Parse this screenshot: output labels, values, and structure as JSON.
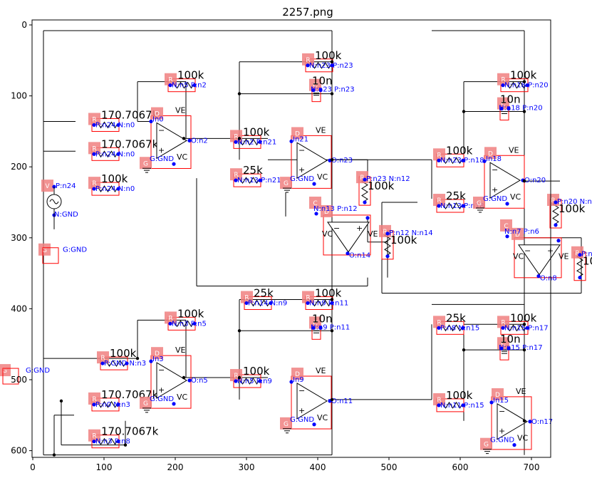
{
  "title": "2257.png",
  "axes": {
    "x_ticks": [
      "0",
      "100",
      "200",
      "300",
      "400",
      "500",
      "600",
      "700"
    ],
    "y_ticks": [
      "0",
      "100",
      "200",
      "300",
      "400",
      "500",
      "600"
    ],
    "xlim": [
      0,
      775
    ],
    "ylim": [
      610,
      -5
    ]
  },
  "components": {
    "resistors": [
      {
        "id": "r1",
        "x": 165,
        "y": 80,
        "value": "100k",
        "pins": "N:n5 P:n2"
      },
      {
        "id": "r2",
        "x": 58,
        "y": 136,
        "value": "170.7067k",
        "pins": "P:n24 N:n0"
      },
      {
        "id": "r3",
        "x": 58,
        "y": 177,
        "value": "170.7067k",
        "pins": "P:n24 N:n0"
      },
      {
        "id": "r4",
        "x": 58,
        "y": 226,
        "value": "100k",
        "pins": "P:n24 N:n0"
      },
      {
        "id": "r5",
        "x": 257,
        "y": 160,
        "value": "100k",
        "pins": "N:n2 P:n21"
      },
      {
        "id": "r6",
        "x": 257,
        "y": 214,
        "value": "25k",
        "pins": "N:n13 P:n21"
      },
      {
        "id": "r7",
        "x": 358,
        "y": 52,
        "value": "100k",
        "pins": "N:n23 P:n23"
      },
      {
        "id": "r8",
        "x": 542,
        "y": 186,
        "value": "100k",
        "pins": "N:n23 P:n18"
      },
      {
        "id": "r9",
        "x": 542,
        "y": 250,
        "value": "25k",
        "pins": "N:n13 P:n18"
      },
      {
        "id": "r10",
        "x": 632,
        "y": 80,
        "value": "100k",
        "pins": "N:n18 P:n20"
      },
      {
        "id": "r11",
        "x": 165,
        "y": 416,
        "value": "100k",
        "pins": "N:n3 P:n5"
      },
      {
        "id": "r12",
        "x": 70,
        "y": 472,
        "value": "100k",
        "pins": "P:GND N:n3"
      },
      {
        "id": "r13",
        "x": 58,
        "y": 530,
        "value": "170.7067k",
        "pins": "P:n0 N:n3"
      },
      {
        "id": "r14",
        "x": 58,
        "y": 582,
        "value": "170.7067k",
        "pins": "N:n3 P:n8"
      },
      {
        "id": "r15",
        "x": 257,
        "y": 497,
        "value": "100k",
        "pins": "N:n5 P:n9"
      },
      {
        "id": "r16",
        "x": 272,
        "y": 387,
        "value": "25k",
        "pins": "P:n14 N:n9"
      },
      {
        "id": "r17",
        "x": 358,
        "y": 387,
        "value": "100k",
        "pins": "N:n9 P:n11"
      },
      {
        "id": "r18",
        "x": 542,
        "y": 422,
        "value": "25k",
        "pins": "P:n8 N:n15"
      },
      {
        "id": "r19",
        "x": 542,
        "y": 531,
        "value": "100k",
        "pins": "N:n11 P:n15"
      },
      {
        "id": "r20",
        "x": 632,
        "y": 422,
        "value": "100k",
        "pins": "N:n15 P:n17"
      }
    ],
    "vresistors": [
      {
        "id": "rv1",
        "x": 466,
        "y": 218,
        "value": "100k",
        "pins": "P:n23 N:n12"
      },
      {
        "id": "rv2",
        "x": 498,
        "y": 294,
        "value": "100k",
        "pins": "P:n12 N:n14"
      },
      {
        "id": "rv3",
        "x": 734,
        "y": 250,
        "value": "100k",
        "pins": "P:n20 N:n6"
      },
      {
        "id": "rv4",
        "x": 768,
        "y": 324,
        "value": "100k",
        "pins": "P:n6 N:n8"
      }
    ],
    "capacitors": [
      {
        "id": "c1",
        "x": 398,
        "y": 88,
        "value": "10n",
        "pins": "N:n23 P:n23"
      },
      {
        "id": "c2",
        "x": 662,
        "y": 114,
        "value": "10n",
        "pins": "N:n18 P:n20"
      },
      {
        "id": "c3",
        "x": 398,
        "y": 423,
        "value": "10n",
        "pins": "N:n9 P:n11"
      },
      {
        "id": "c4",
        "x": 662,
        "y": 452,
        "value": "10n",
        "pins": "N:n15 P:n17"
      }
    ],
    "opamps": [
      {
        "id": "u1",
        "x": 168,
        "y": 130,
        "inp": "In0",
        "out": "O:n2",
        "gnd": "G:GND"
      },
      {
        "id": "u2",
        "x": 365,
        "y": 158,
        "inp": "In21",
        "out": "O:n23",
        "gnd": "G:GND"
      },
      {
        "id": "u3",
        "x": 636,
        "y": 186,
        "inp": "In18",
        "out": "O:n20",
        "gnd": "G:GND"
      },
      {
        "id": "u4",
        "x": 168,
        "y": 468,
        "inp": "In3",
        "out": "O:n5",
        "gnd": "G:GND"
      },
      {
        "id": "u5",
        "x": 365,
        "y": 497,
        "inp": "In9",
        "out": "O:n11",
        "gnd": "G:GND"
      },
      {
        "id": "u6",
        "x": 646,
        "y": 526,
        "inp": "In15",
        "out": "O:n17",
        "gnd": "G:GND"
      }
    ],
    "buffers": [
      {
        "id": "b1",
        "x": 408,
        "y": 268,
        "pins": "N:n13 P:n12",
        "out": "O:n14",
        "vc": "VC",
        "ve": "VE"
      },
      {
        "id": "b2",
        "x": 676,
        "y": 300,
        "pins": "N:n7 P:n6",
        "out": "O:n8",
        "vc": "VC",
        "ve": "VE"
      }
    ],
    "source": {
      "label": "V",
      "pins_top": "P:n24",
      "pins_bottom": "N:GND",
      "ground": "G:GND"
    },
    "grounds": [
      {
        "id": "g1",
        "x": 70,
        "y": 318,
        "label": "G:GND"
      },
      {
        "id": "g2",
        "x": 54,
        "y": 488,
        "label": "G:GND"
      }
    ]
  },
  "colors": {
    "tag": "#f08080",
    "box": "#ff0000",
    "pin": "#0000ff",
    "wire": "#000000"
  }
}
